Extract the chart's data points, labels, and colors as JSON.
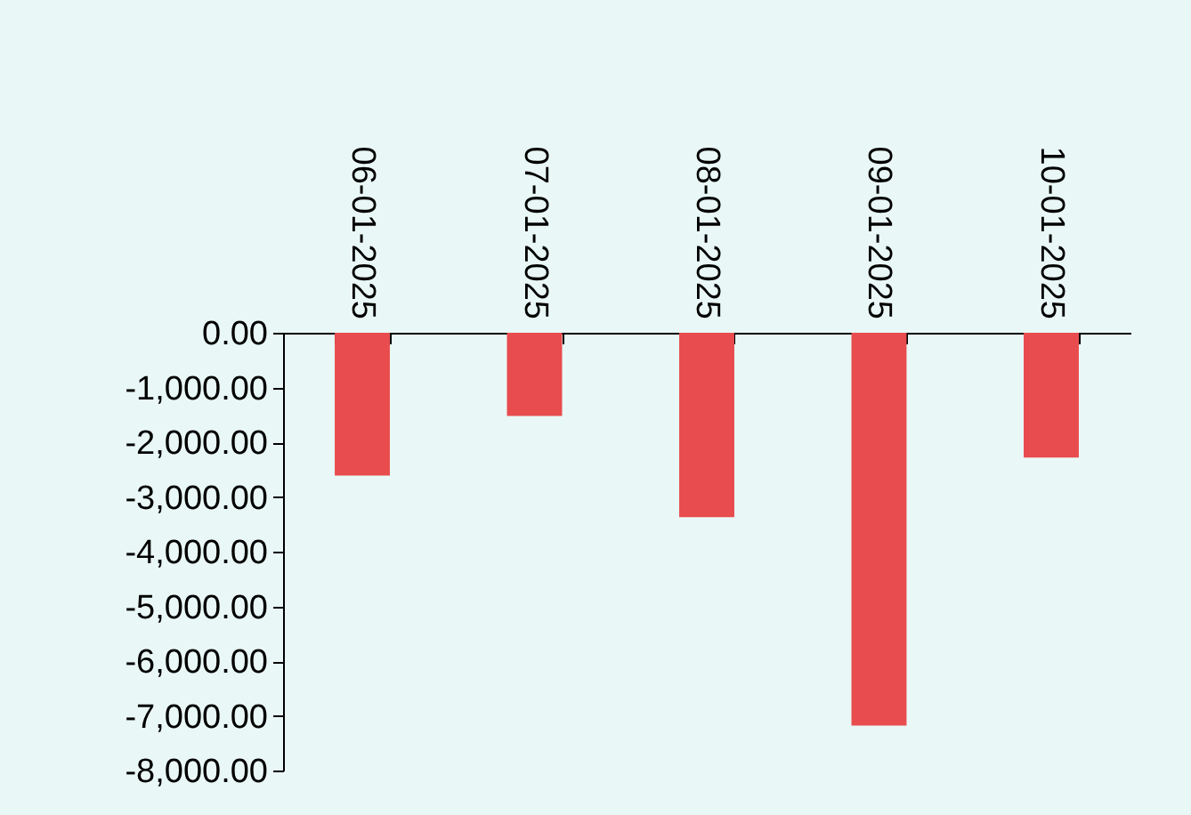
{
  "chart_data": {
    "type": "bar",
    "categories": [
      "06-01-2025",
      "07-01-2025",
      "08-01-2025",
      "09-01-2025",
      "10-01-2025"
    ],
    "values": [
      -2610,
      -1520,
      -3370,
      -7180,
      -2280
    ],
    "color": "#e84c4e",
    "ylim": [
      -8000,
      0
    ],
    "yticks": [
      {
        "value": 0,
        "label": "0.00"
      },
      {
        "value": -1000,
        "label": "-1,000.00"
      },
      {
        "value": -2000,
        "label": "-2,000.00"
      },
      {
        "value": -3000,
        "label": "-3,000.00"
      },
      {
        "value": -4000,
        "label": "-4,000.00"
      },
      {
        "value": -5000,
        "label": "-5,000.00"
      },
      {
        "value": -6000,
        "label": "-6,000.00"
      },
      {
        "value": -7000,
        "label": "-7,000.00"
      },
      {
        "value": -8000,
        "label": "-8,000.00"
      }
    ],
    "grid": false
  }
}
